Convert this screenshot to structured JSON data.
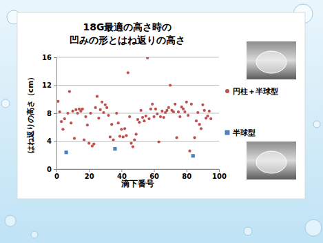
{
  "chart_data": {
    "type": "scatter",
    "title": [
      "18G最適の高さ時の",
      "凹みの形とはね返りの高さ"
    ],
    "x_label": "滴下番号",
    "y_label": "はね返りの高さ（cm）",
    "xlim": [
      0,
      100
    ],
    "xticks": [
      0,
      20,
      40,
      60,
      80,
      100
    ],
    "ylim": [
      0,
      16
    ],
    "yticks": [
      0,
      4,
      8,
      12,
      16
    ],
    "grid": true,
    "legend": "right",
    "series": [
      {
        "name": "円柱＋半球型",
        "color": "#c0504d",
        "marker": "circle",
        "x": [
          1,
          2,
          3,
          4,
          5,
          7,
          8,
          9,
          10,
          11,
          12,
          13,
          14,
          15,
          16,
          17,
          18,
          19,
          20,
          21,
          22,
          23,
          24,
          25,
          26,
          27,
          28,
          29,
          30,
          31,
          32,
          33,
          34,
          35,
          37,
          38,
          39,
          40,
          41,
          42,
          43,
          44,
          45,
          46,
          47,
          48,
          49,
          50,
          51,
          52,
          53,
          54,
          55,
          56,
          57,
          58,
          59,
          60,
          61,
          62,
          63,
          64,
          65,
          66,
          67,
          68,
          69,
          70,
          71,
          72,
          73,
          74,
          75,
          76,
          77,
          78,
          79,
          80,
          81,
          82,
          83,
          85,
          86,
          87,
          88,
          89,
          90,
          91,
          92,
          93,
          94,
          95
        ],
        "values": [
          9.7,
          8.2,
          6.8,
          5.7,
          7.2,
          8.0,
          11.1,
          6.6,
          8.3,
          4.4,
          8.5,
          8.0,
          8.6,
          8.3,
          8.6,
          4.2,
          7.5,
          6.3,
          3.7,
          8.0,
          3.3,
          3.6,
          8.8,
          10.4,
          7.3,
          8.5,
          9.6,
          8.1,
          9.2,
          8.8,
          7.7,
          4.6,
          6.4,
          4.2,
          8.0,
          6.6,
          4.7,
          5.7,
          4.6,
          5.8,
          4.8,
          13.8,
          7.5,
          3.7,
          3.2,
          4.2,
          5.0,
          7.1,
          6.7,
          8.4,
          7.4,
          6.9,
          7.6,
          15.9,
          7.2,
          8.6,
          9.3,
          7.5,
          8.6,
          7.9,
          3.9,
          7.5,
          8.3,
          7.4,
          8.1,
          8.4,
          8.8,
          12.0,
          8.4,
          8.2,
          9.3,
          4.5,
          8.2,
          7.5,
          8.9,
          8.6,
          8.2,
          9.6,
          7.7,
          2.6,
          9.3,
          4.5,
          6.9,
          8.1,
          6.4,
          5.8,
          9.2,
          8.4,
          7.3,
          7.6,
          8.3,
          7.2
        ]
      },
      {
        "name": "半球型",
        "color": "#4f81bd",
        "marker": "square",
        "x": [
          6,
          36,
          84
        ],
        "values": [
          2.4,
          2.9,
          1.9
        ]
      }
    ]
  }
}
